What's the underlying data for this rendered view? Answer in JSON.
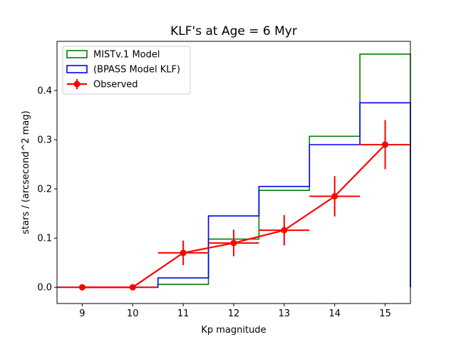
{
  "chart_data": {
    "type": "line",
    "title": "KLF's at Age = 6 Myr",
    "xlabel": "Kp magnitude",
    "ylabel": "stars / (arcsecond^2 mag)",
    "xlim": [
      8.5,
      15.5
    ],
    "ylim": [
      -0.033,
      0.5
    ],
    "xticks": [
      9,
      10,
      11,
      12,
      13,
      14,
      15
    ],
    "yticks": [
      0.0,
      0.1,
      0.2,
      0.3,
      0.4
    ],
    "ytick_labels": [
      "0.0",
      "0.1",
      "0.2",
      "0.3",
      "0.4"
    ],
    "legend_position": "upper-left",
    "series": [
      {
        "name": "MISTv.1 Model",
        "style": "step",
        "color": "#008000",
        "x": [
          9,
          10,
          11,
          12,
          13,
          14,
          15
        ],
        "values": [
          0.0,
          0.0,
          0.006,
          0.098,
          0.197,
          0.307,
          0.474
        ]
      },
      {
        "name": "(BPASS Model KLF)",
        "style": "step",
        "color": "#0000ff",
        "x": [
          9,
          10,
          11,
          12,
          13,
          14,
          15
        ],
        "values": [
          0.0,
          0.0,
          0.019,
          0.145,
          0.205,
          0.29,
          0.375
        ]
      },
      {
        "name": "Observed",
        "style": "errorbar",
        "color": "#ff0000",
        "x": [
          9,
          10,
          11,
          12,
          13,
          14,
          15
        ],
        "values": [
          0.0,
          0.0,
          0.07,
          0.09,
          0.116,
          0.185,
          0.29
        ],
        "xerr": [
          0.5,
          0.5,
          0.5,
          0.5,
          0.5,
          0.5,
          0.5
        ],
        "yerr": [
          0.0,
          0.0,
          0.025,
          0.027,
          0.031,
          0.041,
          0.05
        ]
      }
    ]
  }
}
